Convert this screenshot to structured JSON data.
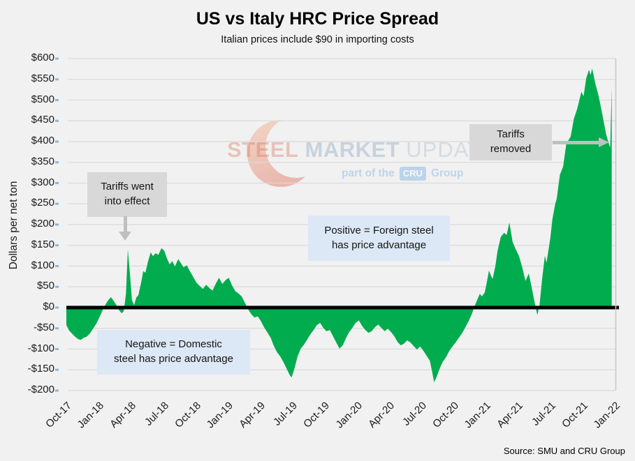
{
  "title": "US vs Italy HRC Price Spread",
  "subtitle": "Italian prices include $90 in importing costs",
  "source": "Source: SMU and CRU Group",
  "y_axis": {
    "label": "Dollars per net ton",
    "ticks": [
      {
        "label": "$600",
        "value": 600
      },
      {
        "label": "$550",
        "value": 550
      },
      {
        "label": "$500",
        "value": 500
      },
      {
        "label": "$450",
        "value": 450
      },
      {
        "label": "$400",
        "value": 400
      },
      {
        "label": "$350",
        "value": 350
      },
      {
        "label": "$300",
        "value": 300
      },
      {
        "label": "$250",
        "value": 250
      },
      {
        "label": "$200",
        "value": 200
      },
      {
        "label": "$150",
        "value": 150
      },
      {
        "label": "$100",
        "value": 100
      },
      {
        "label": "$50",
        "value": 50
      },
      {
        "label": "$0",
        "value": 0
      },
      {
        "label": "-$50",
        "value": -50
      },
      {
        "label": "-$100",
        "value": -100
      },
      {
        "label": "-$150",
        "value": -150
      },
      {
        "label": "-$200",
        "value": -200
      }
    ]
  },
  "x_axis": {
    "ticks": [
      {
        "label": "Oct-17",
        "month": 0
      },
      {
        "label": "Jan-18",
        "month": 3
      },
      {
        "label": "Apr-18",
        "month": 6
      },
      {
        "label": "Jul-18",
        "month": 9
      },
      {
        "label": "Oct-18",
        "month": 12
      },
      {
        "label": "Jan-19",
        "month": 15
      },
      {
        "label": "Apr-19",
        "month": 18
      },
      {
        "label": "Jul-19",
        "month": 21
      },
      {
        "label": "Oct-19",
        "month": 24
      },
      {
        "label": "Jan-20",
        "month": 27
      },
      {
        "label": "Apr-20",
        "month": 30
      },
      {
        "label": "Jul-20",
        "month": 33
      },
      {
        "label": "Oct-20",
        "month": 36
      },
      {
        "label": "Jan-21",
        "month": 39
      },
      {
        "label": "Apr-21",
        "month": 42
      },
      {
        "label": "Jul-21",
        "month": 45
      },
      {
        "label": "Oct-21",
        "month": 48
      },
      {
        "label": "Jan-22",
        "month": 51
      }
    ]
  },
  "annotations": {
    "tariffs_effect": {
      "line1": "Tariffs went",
      "line2": "into effect"
    },
    "tariffs_removed": {
      "line1": "Tariffs",
      "line2": "removed"
    },
    "positive": {
      "line1": "Positive = Foreign steel",
      "line2": "has price advantage"
    },
    "negative": {
      "line1": "Negative = Domestic",
      "line2": "steel has price advantage"
    }
  },
  "watermark": {
    "steel": "STEEL",
    "market": "MARKET",
    "update": "UPDATE",
    "part_of": "part of the",
    "cru": "CRU",
    "group": "Group"
  },
  "colors": {
    "area_green": "#00AC4E",
    "zero_line": "#000000",
    "gray_box": "#D8D8D8",
    "blue_box": "#DCE8F5",
    "arrow_gray": "#BFBFBF",
    "background": "#F1F1F1",
    "gridline": "#DADADA",
    "axis_tick_blue": "#6FA8DC",
    "text_dark": "#1A1A1A",
    "wm_red": "#D96A52",
    "wm_blue": "#8FA9C4",
    "wm_badge": "#9DC3E6"
  },
  "chart_data": {
    "type": "area",
    "title": "US vs Italy HRC Price Spread",
    "subtitle": "Italian prices include $90 in importing costs",
    "series_name": "US minus Italy HRC price spread",
    "unit": "USD per net ton",
    "xlabel": "",
    "ylabel": "Dollars per net ton",
    "ylim": [
      -200,
      600
    ],
    "ytick_step": 50,
    "baseline": 0,
    "grid": "horizontal",
    "legend": "none",
    "x_unit": "months since Oct-2017",
    "categories": [
      "Oct-17",
      "Jan-18",
      "Apr-18",
      "Jul-18",
      "Oct-18",
      "Jan-19",
      "Apr-19",
      "Jul-19",
      "Oct-19",
      "Jan-20",
      "Apr-20",
      "Jul-20",
      "Oct-20",
      "Jan-21",
      "Apr-21",
      "Jul-21",
      "Oct-21",
      "Jan-22"
    ],
    "points": [
      [
        0,
        -42
      ],
      [
        0.25,
        -55
      ],
      [
        0.5,
        -62
      ],
      [
        0.8,
        -70
      ],
      [
        1.1,
        -76
      ],
      [
        1.35,
        -78
      ],
      [
        1.6,
        -73
      ],
      [
        1.9,
        -70
      ],
      [
        2.2,
        -62
      ],
      [
        2.5,
        -50
      ],
      [
        2.8,
        -38
      ],
      [
        3.1,
        -22
      ],
      [
        3.4,
        -5
      ],
      [
        3.65,
        8
      ],
      [
        3.9,
        18
      ],
      [
        4.15,
        25
      ],
      [
        4.4,
        16
      ],
      [
        4.65,
        6
      ],
      [
        4.9,
        -6
      ],
      [
        5.15,
        -14
      ],
      [
        5.35,
        -8
      ],
      [
        5.55,
        35
      ],
      [
        5.72,
        140
      ],
      [
        5.9,
        85
      ],
      [
        6.1,
        18
      ],
      [
        6.3,
        6
      ],
      [
        6.5,
        24
      ],
      [
        6.7,
        30
      ],
      [
        6.95,
        60
      ],
      [
        7.15,
        88
      ],
      [
        7.35,
        84
      ],
      [
        7.6,
        112
      ],
      [
        7.85,
        133
      ],
      [
        8.05,
        124
      ],
      [
        8.3,
        131
      ],
      [
        8.55,
        127
      ],
      [
        8.85,
        143
      ],
      [
        9.1,
        137
      ],
      [
        9.35,
        119
      ],
      [
        9.6,
        104
      ],
      [
        9.85,
        112
      ],
      [
        10.1,
        99
      ],
      [
        10.4,
        117
      ],
      [
        10.65,
        107
      ],
      [
        10.9,
        97
      ],
      [
        11.2,
        102
      ],
      [
        11.5,
        87
      ],
      [
        11.8,
        74
      ],
      [
        12.1,
        60
      ],
      [
        12.4,
        52
      ],
      [
        12.7,
        45
      ],
      [
        13,
        55
      ],
      [
        13.3,
        47
      ],
      [
        13.6,
        41
      ],
      [
        13.9,
        58
      ],
      [
        14.2,
        72
      ],
      [
        14.5,
        57
      ],
      [
        14.8,
        66
      ],
      [
        15.1,
        72
      ],
      [
        15.4,
        54
      ],
      [
        15.7,
        40
      ],
      [
        16,
        34
      ],
      [
        16.3,
        27
      ],
      [
        16.6,
        12
      ],
      [
        16.9,
        -4
      ],
      [
        17.2,
        -16
      ],
      [
        17.5,
        -24
      ],
      [
        17.8,
        -21
      ],
      [
        18.1,
        -33
      ],
      [
        18.4,
        -48
      ],
      [
        18.7,
        -60
      ],
      [
        19,
        -73
      ],
      [
        19.3,
        -93
      ],
      [
        19.6,
        -108
      ],
      [
        19.9,
        -118
      ],
      [
        20.2,
        -132
      ],
      [
        20.5,
        -148
      ],
      [
        20.8,
        -164
      ],
      [
        20.95,
        -168
      ],
      [
        21.2,
        -148
      ],
      [
        21.5,
        -118
      ],
      [
        21.8,
        -99
      ],
      [
        22.1,
        -89
      ],
      [
        22.4,
        -77
      ],
      [
        22.7,
        -64
      ],
      [
        23,
        -54
      ],
      [
        23.3,
        -42
      ],
      [
        23.6,
        -37
      ],
      [
        23.9,
        -49
      ],
      [
        24.2,
        -57
      ],
      [
        24.5,
        -54
      ],
      [
        24.8,
        -69
      ],
      [
        25.1,
        -84
      ],
      [
        25.4,
        -99
      ],
      [
        25.7,
        -91
      ],
      [
        26,
        -74
      ],
      [
        26.3,
        -59
      ],
      [
        26.6,
        -49
      ],
      [
        26.9,
        -37
      ],
      [
        27.2,
        -31
      ],
      [
        27.5,
        -44
      ],
      [
        27.8,
        -54
      ],
      [
        28.1,
        -61
      ],
      [
        28.4,
        -57
      ],
      [
        28.7,
        -47
      ],
      [
        29,
        -41
      ],
      [
        29.3,
        -49
      ],
      [
        29.6,
        -57
      ],
      [
        29.9,
        -51
      ],
      [
        30.2,
        -59
      ],
      [
        30.5,
        -69
      ],
      [
        30.8,
        -83
      ],
      [
        31.1,
        -91
      ],
      [
        31.4,
        -87
      ],
      [
        31.7,
        -79
      ],
      [
        32,
        -84
      ],
      [
        32.3,
        -93
      ],
      [
        32.6,
        -101
      ],
      [
        32.9,
        -94
      ],
      [
        33.2,
        -104
      ],
      [
        33.5,
        -116
      ],
      [
        33.8,
        -128
      ],
      [
        34,
        -152
      ],
      [
        34.2,
        -180
      ],
      [
        34.45,
        -166
      ],
      [
        34.7,
        -148
      ],
      [
        35,
        -131
      ],
      [
        35.3,
        -120
      ],
      [
        35.6,
        -105
      ],
      [
        35.9,
        -94
      ],
      [
        36.2,
        -84
      ],
      [
        36.5,
        -73
      ],
      [
        36.8,
        -62
      ],
      [
        37.1,
        -48
      ],
      [
        37.4,
        -33
      ],
      [
        37.7,
        -16
      ],
      [
        37.95,
        2
      ],
      [
        38.2,
        18
      ],
      [
        38.45,
        33
      ],
      [
        38.65,
        27
      ],
      [
        38.9,
        36
      ],
      [
        39.1,
        60
      ],
      [
        39.3,
        89
      ],
      [
        39.5,
        76
      ],
      [
        39.65,
        69
      ],
      [
        39.9,
        100
      ],
      [
        40.1,
        136
      ],
      [
        40.4,
        170
      ],
      [
        40.7,
        180
      ],
      [
        40.95,
        175
      ],
      [
        41.2,
        205
      ],
      [
        41.5,
        158
      ],
      [
        41.8,
        140
      ],
      [
        42.1,
        124
      ],
      [
        42.4,
        97
      ],
      [
        42.7,
        64
      ],
      [
        43,
        82
      ],
      [
        43.25,
        52
      ],
      [
        43.45,
        25
      ],
      [
        43.65,
        0
      ],
      [
        43.8,
        -18
      ],
      [
        44,
        5
      ],
      [
        44.25,
        70
      ],
      [
        44.5,
        125
      ],
      [
        44.65,
        108
      ],
      [
        45,
        165
      ],
      [
        45.2,
        212
      ],
      [
        45.45,
        248
      ],
      [
        45.6,
        262
      ],
      [
        45.9,
        320
      ],
      [
        46.2,
        340
      ],
      [
        46.5,
        395
      ],
      [
        46.9,
        412
      ],
      [
        47.2,
        455
      ],
      [
        47.5,
        478
      ],
      [
        47.9,
        520
      ],
      [
        48.1,
        509
      ],
      [
        48.35,
        553
      ],
      [
        48.6,
        573
      ],
      [
        48.75,
        560
      ],
      [
        48.9,
        576
      ],
      [
        49.2,
        539
      ],
      [
        49.5,
        510
      ],
      [
        49.8,
        472
      ],
      [
        50,
        444
      ],
      [
        50.2,
        417
      ],
      [
        50.45,
        395
      ],
      [
        50.58,
        385
      ],
      [
        50.72,
        530
      ]
    ]
  }
}
